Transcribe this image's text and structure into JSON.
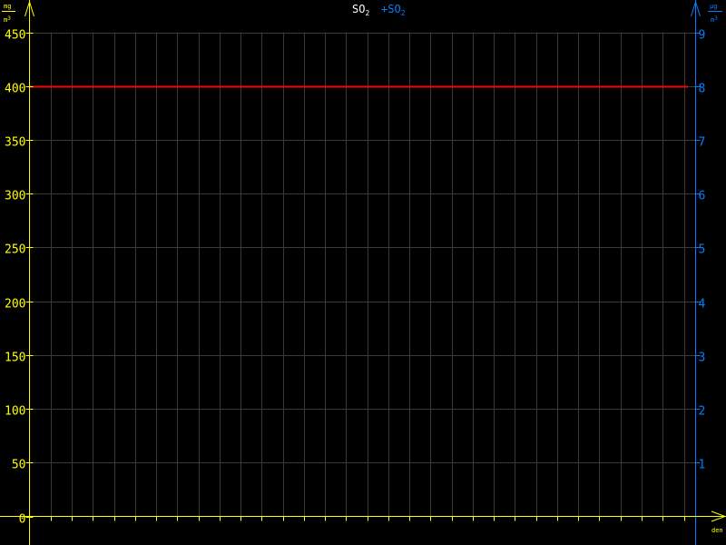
{
  "chart_data": {
    "type": "line",
    "title_left": "SO",
    "title_left_sub": "2",
    "title_right": "+SO",
    "title_right_sub": "2",
    "xlabel": "den",
    "ylabel_left_num": "mg",
    "ylabel_left_den": "m",
    "ylabel_left_exp": "3",
    "ylabel_right_num": "µg",
    "ylabel_right_den": "m",
    "ylabel_right_exp": "3",
    "ylim_left": [
      0,
      450
    ],
    "ylim_right": [
      0,
      9
    ],
    "yticks_left": [
      "0",
      "50",
      "100",
      "150",
      "200",
      "250",
      "300",
      "350",
      "400",
      "450"
    ],
    "yticks_right": [
      "1",
      "2",
      "3",
      "4",
      "5",
      "6",
      "7",
      "8",
      "9"
    ],
    "x_days": 31,
    "grid": true,
    "series": [
      {
        "type": "hline",
        "axis": "left",
        "value": 400,
        "color": "#ff0000"
      }
    ],
    "colors": {
      "left_axis": "#ffff00",
      "right_axis": "#0080ff",
      "grid": "#3a3a3a",
      "title": "#ffffff"
    }
  }
}
